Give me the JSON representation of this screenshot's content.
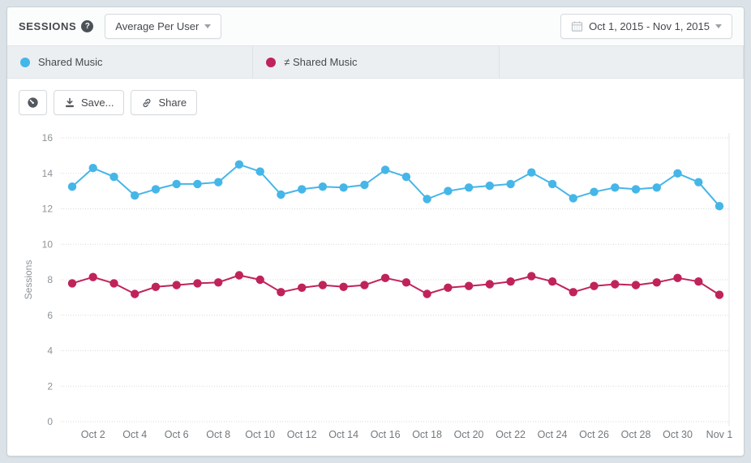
{
  "header": {
    "title": "SESSIONS",
    "help_label": "?",
    "metric_dropdown": {
      "value": "Average Per User"
    },
    "date_range": {
      "value": "Oct 1, 2015 - Nov 1, 2015"
    }
  },
  "legend": {
    "segments": [
      {
        "label": "Shared Music",
        "color": "#45b6e8"
      },
      {
        "label": "≠ Shared Music",
        "color": "#c0235a"
      }
    ]
  },
  "toolbar": {
    "save_label": "Save...",
    "share_label": "Share"
  },
  "colors": {
    "series_blue": "#45b6e8",
    "series_red": "#c0235a",
    "grid": "#d6dadd",
    "axis_text": "#8d9398",
    "x_text": "#73787d"
  },
  "chart_data": {
    "type": "line",
    "title": "",
    "xlabel": "",
    "ylabel": "Sessions",
    "ylim": [
      0,
      16
    ],
    "ytick_step": 2,
    "grid": "horizontal-dotted",
    "legend_position": "top-tabs",
    "categories": [
      "Oct 1",
      "Oct 2",
      "Oct 3",
      "Oct 4",
      "Oct 5",
      "Oct 6",
      "Oct 7",
      "Oct 8",
      "Oct 9",
      "Oct 10",
      "Oct 11",
      "Oct 12",
      "Oct 13",
      "Oct 14",
      "Oct 15",
      "Oct 16",
      "Oct 17",
      "Oct 18",
      "Oct 19",
      "Oct 20",
      "Oct 21",
      "Oct 22",
      "Oct 23",
      "Oct 24",
      "Oct 25",
      "Oct 26",
      "Oct 27",
      "Oct 28",
      "Oct 29",
      "Oct 30",
      "Oct 31",
      "Nov 1"
    ],
    "x_tick_labels": [
      "Oct 2",
      "Oct 4",
      "Oct 6",
      "Oct 8",
      "Oct 10",
      "Oct 12",
      "Oct 14",
      "Oct 16",
      "Oct 18",
      "Oct 20",
      "Oct 22",
      "Oct 24",
      "Oct 26",
      "Oct 28",
      "Oct 30",
      "Nov 1"
    ],
    "series": [
      {
        "name": "Shared Music",
        "color": "#45b6e8",
        "values": [
          13.25,
          14.3,
          13.8,
          12.75,
          13.1,
          13.4,
          13.4,
          13.5,
          14.5,
          14.1,
          12.8,
          13.1,
          13.25,
          13.2,
          13.35,
          14.2,
          13.8,
          12.55,
          13.0,
          13.2,
          13.3,
          13.4,
          14.05,
          13.4,
          12.6,
          12.95,
          13.2,
          13.1,
          13.2,
          14.0,
          13.5,
          12.15
        ]
      },
      {
        "name": "≠ Shared Music",
        "color": "#c0235a",
        "values": [
          7.8,
          8.15,
          7.8,
          7.2,
          7.6,
          7.7,
          7.8,
          7.85,
          8.25,
          8.0,
          7.3,
          7.55,
          7.7,
          7.6,
          7.7,
          8.1,
          7.85,
          7.2,
          7.55,
          7.65,
          7.75,
          7.9,
          8.2,
          7.9,
          7.3,
          7.65,
          7.75,
          7.7,
          7.85,
          8.1,
          7.9,
          7.15
        ]
      }
    ]
  }
}
